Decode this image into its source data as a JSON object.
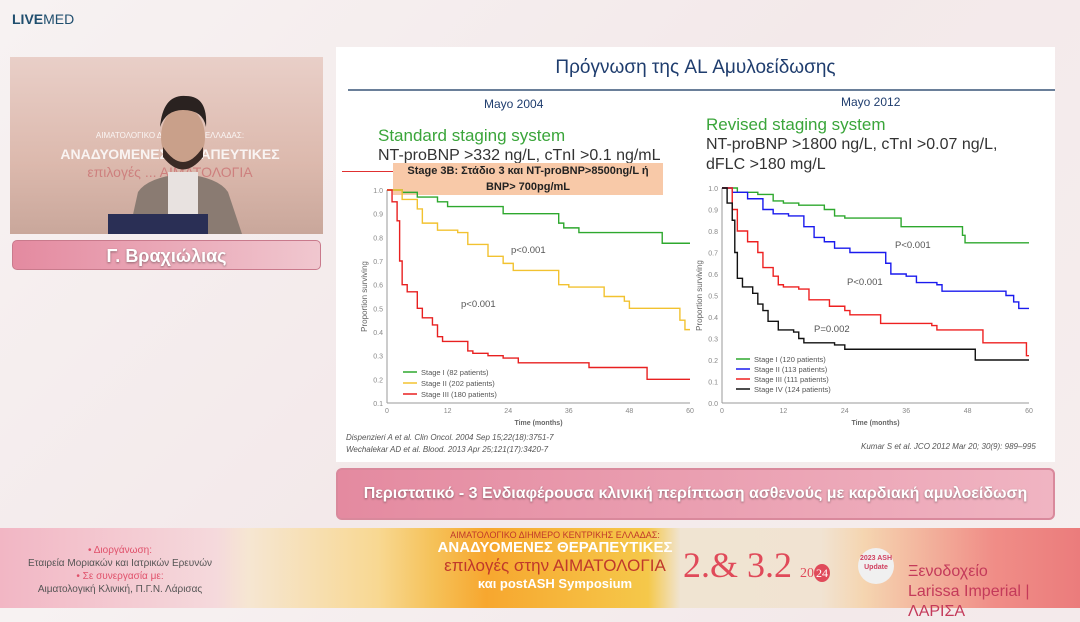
{
  "brand": {
    "logo_bold": "LIVE",
    "logo_light": "MED"
  },
  "video": {
    "backdrop_line1": "ΑΙΜΑΤΟΛΟΓΙΚΟ ΔΙΗΜΕΡΟ ... ΕΛΛΑΔΑΣ:",
    "backdrop_line2": "ΑΝΑΔΥΟΜΕΝΕΣ ΘΕΡΑΠΕΥΤΙΚΕΣ",
    "backdrop_line3": "επιλογές ... ΑΙΜΑΤΟΛΟΓΙΑ"
  },
  "speaker": {
    "name": "Γ. Βραχιώλιας"
  },
  "slide": {
    "title": "Πρόγνωση της AL Αμυλοείδωσης",
    "left": {
      "year": "Mayo 2004",
      "heading": "Standard staging system",
      "criteria": "NT-proBNP >332 ng/L, cTnI >0.1 ng/mL",
      "highlight": "Stage 3B: Στάδιο 3 και NT-proBNP>8500ng/L ή BNP> 700pg/mL",
      "citation1": "Dispenzieri A et al. Clin Oncol. 2004 Sep 15;22(18):3751-7",
      "citation2": "Wechalekar AD et al. Blood. 2013 Apr 25;121(17):3420-7"
    },
    "right": {
      "year": "Mayo 2012",
      "heading": "Revised staging system",
      "criteria1": "NT-proBNP >1800 ng/L, cTnI >0.07 ng/L,",
      "criteria2": "dFLC >180 mg/L",
      "citation": "Kumar S et al. JCO 2012 Mar 20; 30(9): 989–995"
    }
  },
  "chart_data": [
    {
      "type": "line",
      "xlabel": "Time (months)",
      "ylabel": "Proportion surviving",
      "xlim": [
        0,
        60
      ],
      "ylim": [
        0.1,
        1.0
      ],
      "xticks": [
        "0",
        "12",
        "24",
        "36",
        "48",
        "60"
      ],
      "yticks": [
        "0.1",
        "0.2",
        "0.3",
        "0.4",
        "0.5",
        "0.6",
        "0.7",
        "0.8",
        "0.9",
        "1.0"
      ],
      "legend": "bottom-left",
      "annotations": [
        "p<0.001",
        "p<0.001"
      ],
      "series": [
        {
          "name": "Stage I (82 patients)",
          "color": "#2ea82e",
          "points": [
            [
              0,
              1
            ],
            [
              2,
              1
            ],
            [
              3,
              0.99
            ],
            [
              6,
              0.97
            ],
            [
              10,
              0.95
            ],
            [
              12,
              0.93
            ],
            [
              23,
              0.9
            ],
            [
              33,
              0.9
            ],
            [
              34,
              0.86
            ],
            [
              35,
              0.84
            ],
            [
              38,
              0.82
            ],
            [
              54,
              0.82
            ],
            [
              54.5,
              0.775
            ],
            [
              60,
              0.775
            ]
          ]
        },
        {
          "name": "Stage II (202 patients)",
          "color": "#f2c230",
          "points": [
            [
              0,
              1
            ],
            [
              3,
              0.96
            ],
            [
              6,
              0.92
            ],
            [
              7,
              0.86
            ],
            [
              10,
              0.83
            ],
            [
              14,
              0.82
            ],
            [
              16,
              0.77
            ],
            [
              20,
              0.72
            ],
            [
              23,
              0.69
            ],
            [
              25,
              0.66
            ],
            [
              31,
              0.66
            ],
            [
              34,
              0.6
            ],
            [
              36,
              0.59
            ],
            [
              42,
              0.59
            ],
            [
              43,
              0.55
            ],
            [
              47,
              0.53
            ],
            [
              48,
              0.5
            ],
            [
              56,
              0.5
            ],
            [
              58,
              0.45
            ],
            [
              59,
              0.41
            ],
            [
              60,
              0.41
            ]
          ]
        },
        {
          "name": "Stage III (180 patients)",
          "color": "#e82020",
          "points": [
            [
              0,
              1
            ],
            [
              1,
              0.95
            ],
            [
              2,
              0.87
            ],
            [
              2.5,
              0.7
            ],
            [
              3,
              0.6
            ],
            [
              4,
              0.57
            ],
            [
              6,
              0.5
            ],
            [
              7,
              0.46
            ],
            [
              9,
              0.43
            ],
            [
              10,
              0.38
            ],
            [
              11,
              0.36
            ],
            [
              14,
              0.36
            ],
            [
              16,
              0.32
            ],
            [
              17,
              0.31
            ],
            [
              20,
              0.3
            ],
            [
              23,
              0.29
            ],
            [
              26,
              0.27
            ],
            [
              39,
              0.27
            ],
            [
              40,
              0.25
            ],
            [
              51,
              0.25
            ],
            [
              51.5,
              0.2
            ],
            [
              60,
              0.2
            ]
          ]
        }
      ]
    },
    {
      "type": "line",
      "xlabel": "Time (months)",
      "ylabel": "Proportion surviving",
      "xlim": [
        0,
        60
      ],
      "ylim": [
        0.0,
        1.0
      ],
      "xticks": [
        "0",
        "12",
        "24",
        "36",
        "48",
        "60"
      ],
      "yticks": [
        "0.0",
        "0.1",
        "0.2",
        "0.3",
        "0.4",
        "0.5",
        "0.6",
        "0.7",
        "0.8",
        "0.9",
        "1.0"
      ],
      "legend": "bottom-left",
      "annotations": [
        "P<0.001",
        "P<0.001",
        "P=0.002"
      ],
      "series": [
        {
          "name": "Stage I (120 patients)",
          "color": "#2ea82e",
          "points": [
            [
              0,
              1
            ],
            [
              3,
              0.98
            ],
            [
              7,
              0.97
            ],
            [
              10,
              0.94
            ],
            [
              12,
              0.93
            ],
            [
              15,
              0.92
            ],
            [
              20,
              0.9
            ],
            [
              22,
              0.87
            ],
            [
              24,
              0.86
            ],
            [
              34,
              0.86
            ],
            [
              35,
              0.82
            ],
            [
              46,
              0.82
            ],
            [
              47,
              0.78
            ],
            [
              47.5,
              0.745
            ],
            [
              60,
              0.745
            ]
          ]
        },
        {
          "name": "Stage II (113 patients)",
          "color": "#1a1aee",
          "points": [
            [
              0,
              1
            ],
            [
              2,
              0.98
            ],
            [
              5,
              0.95
            ],
            [
              8,
              0.9
            ],
            [
              10,
              0.88
            ],
            [
              13,
              0.87
            ],
            [
              16,
              0.82
            ],
            [
              18,
              0.77
            ],
            [
              20,
              0.75
            ],
            [
              22,
              0.72
            ],
            [
              25,
              0.7
            ],
            [
              31,
              0.7
            ],
            [
              32,
              0.65
            ],
            [
              33,
              0.6
            ],
            [
              36,
              0.59
            ],
            [
              38,
              0.56
            ],
            [
              42,
              0.55
            ],
            [
              43,
              0.52
            ],
            [
              55,
              0.52
            ],
            [
              55.5,
              0.5
            ],
            [
              57,
              0.47
            ],
            [
              58,
              0.44
            ],
            [
              60,
              0.44
            ]
          ]
        },
        {
          "name": "Stage III (111 patients)",
          "color": "#ee2020",
          "points": [
            [
              0,
              1
            ],
            [
              2,
              0.9
            ],
            [
              3,
              0.8
            ],
            [
              5,
              0.75
            ],
            [
              7,
              0.7
            ],
            [
              8,
              0.63
            ],
            [
              10,
              0.59
            ],
            [
              11,
              0.55
            ],
            [
              12,
              0.54
            ],
            [
              15,
              0.53
            ],
            [
              17,
              0.48
            ],
            [
              21,
              0.45
            ],
            [
              24,
              0.43
            ],
            [
              25,
              0.41
            ],
            [
              31,
              0.37
            ],
            [
              41,
              0.36
            ],
            [
              42,
              0.34
            ],
            [
              50,
              0.34
            ],
            [
              51,
              0.28
            ],
            [
              59,
              0.28
            ],
            [
              59.5,
              0.22
            ],
            [
              60,
              0.22
            ]
          ]
        },
        {
          "name": "Stage IV (124 patients)",
          "color": "#111111",
          "points": [
            [
              0,
              1
            ],
            [
              1,
              0.93
            ],
            [
              2,
              0.85
            ],
            [
              2.5,
              0.7
            ],
            [
              3,
              0.58
            ],
            [
              4,
              0.54
            ],
            [
              6,
              0.51
            ],
            [
              7,
              0.46
            ],
            [
              8,
              0.43
            ],
            [
              9,
              0.38
            ],
            [
              11,
              0.34
            ],
            [
              14,
              0.33
            ],
            [
              15,
              0.3
            ],
            [
              16,
              0.28
            ],
            [
              22,
              0.27
            ],
            [
              24,
              0.25
            ],
            [
              49,
              0.25
            ],
            [
              49.5,
              0.2
            ],
            [
              60,
              0.2
            ]
          ]
        }
      ]
    }
  ],
  "caption": "Περιστατικό - 3 Ενδιαφέρουσα κλινική περίπτωση ασθενούς με καρδιακή αμυλοείδωση",
  "footer": {
    "org_label": "• Διοργάνωση:",
    "org_value": "Εταιρεία Μοριακών και Ιατρικών Ερευνών",
    "collab_label": "• Σε συνεργασία με:",
    "collab_value": "Αιματολογική Κλινική, Π.Γ.Ν. Λάρισας",
    "event_line1": "ΑΙΜΑΤΟΛΟΓΙΚΟ ΔΙΗΜΕΡΟ ΚΕΝΤΡΙΚΗΣ ΕΛΛΑΔΑΣ:",
    "event_line2": "ΑΝΑΔΥΟΜΕΝΕΣ ΘΕΡΑΠΕΥΤΙΚΕΣ",
    "event_line3": "επιλογές στην ΑΙΜΑΤΟΛΟΓΙΑ",
    "event_line4": "και postASH Symposium",
    "dates": "2.& 3.2",
    "year_a": "20",
    "year_b": "24",
    "ash_seal": "2023 ASH Update",
    "venue_line1": "Ξενοδοχείο",
    "venue_line2": "Larissa Imperial | ΛΑΡΙΣΑ"
  }
}
